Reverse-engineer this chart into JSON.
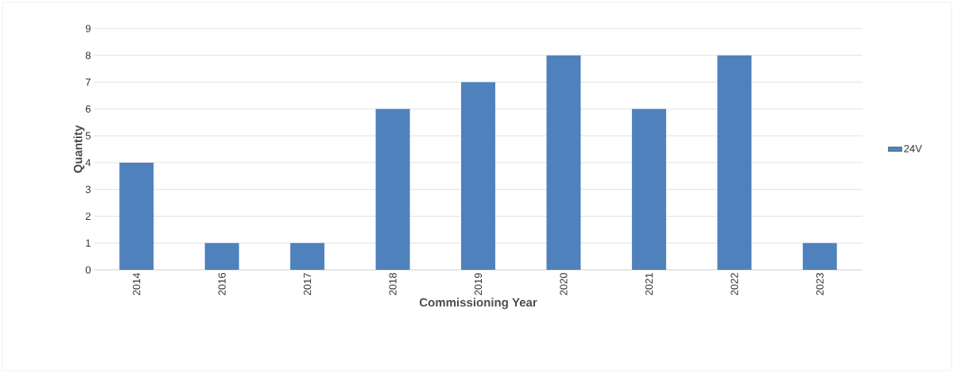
{
  "chart_data": {
    "type": "bar",
    "xlabel": "Commissioning Year",
    "ylabel": "Quantity",
    "categories": [
      "2014",
      "2016",
      "2017",
      "2018",
      "2019",
      "2020",
      "2021",
      "2022",
      "2023"
    ],
    "series": [
      {
        "name": "24V",
        "color": "#4f81bd",
        "values": [
          4,
          1,
          1,
          6,
          7,
          8,
          6,
          8,
          1
        ]
      }
    ],
    "ylim": [
      0,
      9
    ],
    "yticks": [
      0,
      1,
      2,
      3,
      4,
      5,
      6,
      7,
      8,
      9
    ],
    "grid": "y",
    "legend": "right"
  }
}
